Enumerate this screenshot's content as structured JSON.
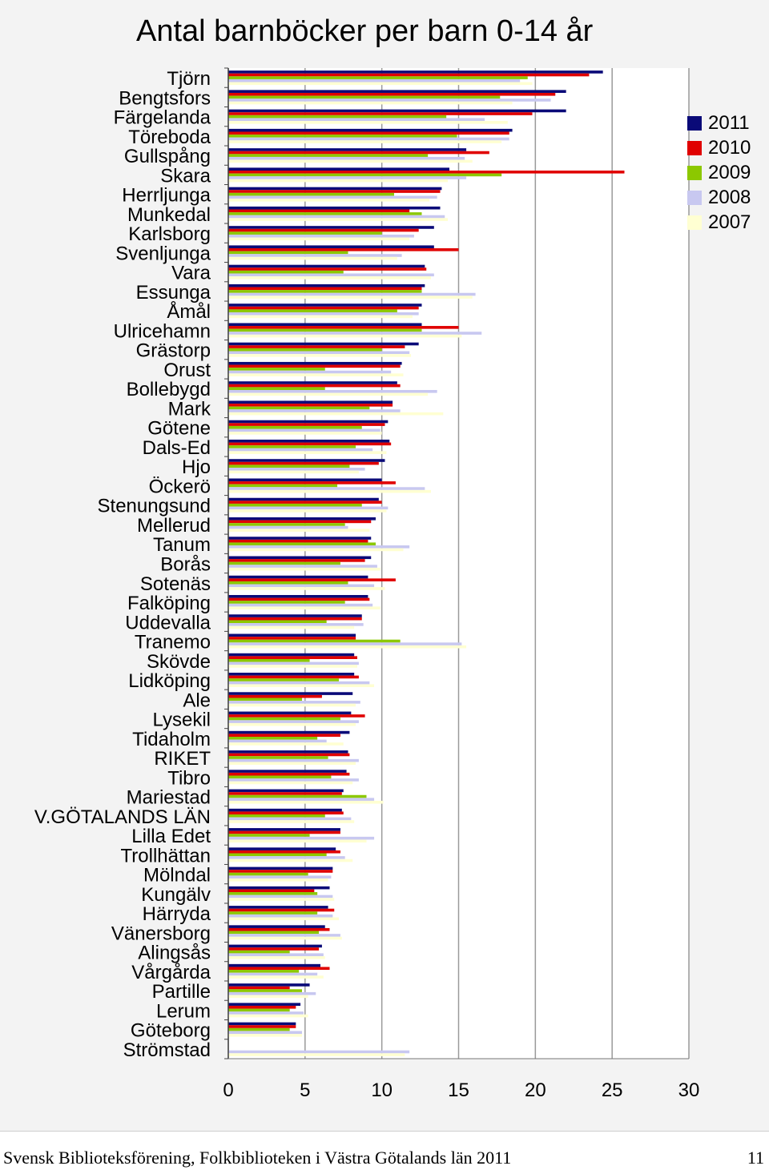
{
  "chart_data": {
    "type": "bar",
    "orientation": "horizontal",
    "title": "Antal barnböcker per barn 0-14 år",
    "xlim": [
      0,
      30
    ],
    "x_ticks": [
      "0",
      "5",
      "10",
      "15",
      "20",
      "25",
      "30"
    ],
    "grid": true,
    "legend_position": "right",
    "categories": [
      "Tjörn",
      "Bengtsfors",
      "Färgelanda",
      "Töreboda",
      "Gullspång",
      "Skara",
      "Herrljunga",
      "Munkedal",
      "Karlsborg",
      "Svenljunga",
      "Vara",
      "Essunga",
      "Åmål",
      "Ulricehamn",
      "Grästorp",
      "Orust",
      "Bollebygd",
      "Mark",
      "Götene",
      "Dals-Ed",
      "Hjo",
      "Öckerö",
      "Stenungsund",
      "Mellerud",
      "Tanum",
      "Borås",
      "Sotenäs",
      "Falköping",
      "Uddevalla",
      "Tranemo",
      "Skövde",
      "Lidköping",
      "Ale",
      "Lysekil",
      "Tidaholm",
      "RIKET",
      "Tibro",
      "Mariestad",
      "V.GÖTALANDS LÄN",
      "Lilla Edet",
      "Trollhättan",
      "Mölndal",
      "Kungälv",
      "Härryda",
      "Vänersborg",
      "Alingsås",
      "Vårgårda",
      "Partille",
      "Lerum",
      "Göteborg",
      "Strömstad"
    ],
    "series": [
      {
        "name": "2011",
        "color": "#0a0a78",
        "values": [
          24.4,
          22.0,
          22.0,
          18.5,
          15.5,
          14.4,
          13.9,
          13.8,
          13.4,
          13.4,
          12.8,
          12.8,
          12.6,
          12.6,
          12.4,
          11.3,
          11.0,
          10.7,
          10.4,
          10.5,
          10.2,
          10.0,
          9.8,
          9.6,
          9.3,
          9.3,
          9.1,
          9.1,
          8.7,
          8.3,
          8.2,
          8.2,
          8.1,
          8.0,
          7.9,
          7.8,
          7.7,
          7.5,
          7.4,
          7.3,
          7.0,
          6.8,
          6.6,
          6.5,
          6.3,
          6.1,
          6.0,
          5.3,
          4.7,
          4.4,
          0
        ]
      },
      {
        "name": "2010",
        "color": "#e00000",
        "values": [
          23.5,
          21.3,
          19.8,
          18.3,
          17.0,
          25.8,
          13.8,
          11.8,
          12.4,
          15.0,
          12.9,
          12.6,
          12.4,
          15.0,
          11.5,
          11.2,
          11.2,
          10.7,
          10.2,
          10.6,
          9.8,
          10.9,
          10.0,
          9.3,
          9.1,
          8.9,
          10.9,
          9.2,
          8.7,
          8.3,
          8.4,
          8.5,
          6.1,
          8.9,
          7.3,
          7.9,
          7.9,
          7.4,
          7.5,
          7.3,
          7.3,
          6.8,
          5.6,
          6.9,
          6.6,
          5.9,
          6.6,
          4.0,
          4.4,
          4.4,
          0
        ]
      },
      {
        "name": "2009",
        "color": "#8cc800",
        "values": [
          19.5,
          17.7,
          14.2,
          14.9,
          13.0,
          17.8,
          10.8,
          12.6,
          10.0,
          7.8,
          7.5,
          12.6,
          11.0,
          12.6,
          10.0,
          6.3,
          6.3,
          9.2,
          8.7,
          8.3,
          7.9,
          7.1,
          8.7,
          7.6,
          9.6,
          7.3,
          7.8,
          7.6,
          6.4,
          11.2,
          5.3,
          7.2,
          4.8,
          7.3,
          5.8,
          6.5,
          6.7,
          9.0,
          6.3,
          5.3,
          6.4,
          5.2,
          5.8,
          5.8,
          5.9,
          4.0,
          4.6,
          4.8,
          4.0,
          4.0,
          0
        ]
      },
      {
        "name": "2008",
        "color": "#c8c8f0",
        "values": [
          19.0,
          21.0,
          16.7,
          18.3,
          15.4,
          15.5,
          13.6,
          14.1,
          12.1,
          11.3,
          13.4,
          16.1,
          12.4,
          16.5,
          11.8,
          10.6,
          13.6,
          11.2,
          9.9,
          9.4,
          8.9,
          12.8,
          10.4,
          7.8,
          11.8,
          9.7,
          9.5,
          9.4,
          8.8,
          15.2,
          8.5,
          9.2,
          8.6,
          8.5,
          6.4,
          8.5,
          8.5,
          9.5,
          8.0,
          9.5,
          7.6,
          6.7,
          6.8,
          6.8,
          7.3,
          6.2,
          5.8,
          5.7,
          4.9,
          4.8,
          11.8
        ]
      },
      {
        "name": "2007",
        "color": "#ffffd2",
        "values": [
          19.8,
          18.5,
          18.2,
          17.8,
          15.9,
          14.3,
          13.1,
          14.3,
          11.8,
          11.0,
          13.2,
          15.9,
          12.0,
          15.2,
          11.9,
          11.4,
          13.0,
          14.0,
          10.0,
          10.3,
          8.5,
          13.2,
          10.3,
          9.2,
          11.4,
          9.9,
          10.2,
          9.9,
          8.2,
          15.5,
          8.4,
          9.5,
          8.3,
          8.3,
          7.5,
          8.3,
          8.1,
          10.1,
          8.2,
          9.0,
          8.1,
          6.5,
          6.9,
          7.2,
          7.4,
          6.3,
          6.2,
          5.2,
          5.2,
          4.8,
          11.5
        ]
      }
    ]
  },
  "footer": {
    "text": "Svensk Biblioteksförening, Folkbiblioteken i Västra Götalands län 2011",
    "page_number": "11"
  }
}
